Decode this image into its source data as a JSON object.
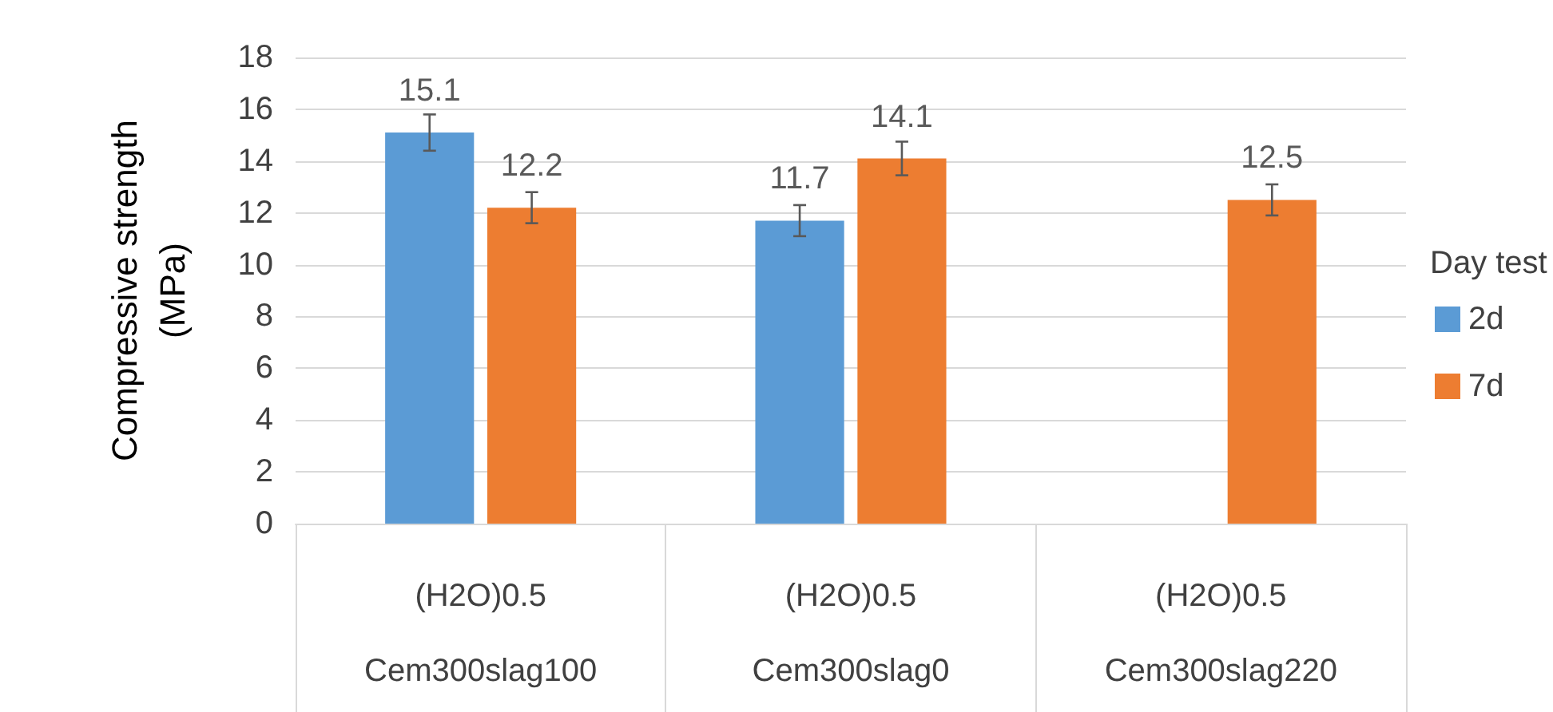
{
  "chart_data": {
    "type": "bar",
    "ylabel": "Compressive strength (MPa)",
    "legend_title": "Day test",
    "categories": [
      "(H2O)0.5\nCem300slag100",
      "(H2O)0.5\nCem300slag0",
      "(H2O)0.5\nCem300slag220"
    ],
    "series": [
      {
        "name": "2d",
        "color": "#5b9bd5",
        "values": [
          15.1,
          11.7,
          null
        ],
        "errors": [
          0.7,
          0.6,
          null
        ]
      },
      {
        "name": "7d",
        "color": "#ed7d31",
        "values": [
          12.2,
          14.1,
          12.5
        ],
        "errors": [
          0.6,
          0.65,
          0.6
        ]
      }
    ],
    "ylim": [
      0,
      18
    ],
    "yticks": [
      0,
      2,
      4,
      6,
      8,
      10,
      12,
      14,
      16,
      18
    ],
    "grid": "y",
    "legend": "right",
    "data_labels": true
  }
}
